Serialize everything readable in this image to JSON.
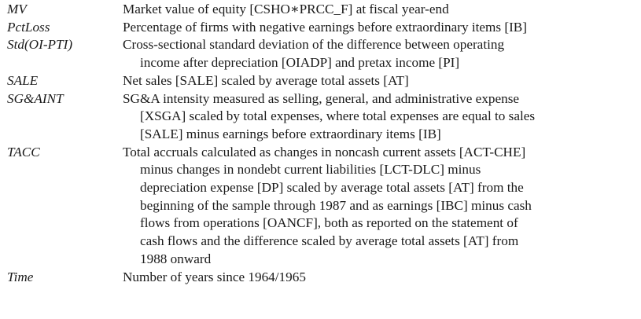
{
  "rows": [
    {
      "term": "MV",
      "lines": [
        "Market value of equity [CSHO∗PRCC_F] at fiscal year-end"
      ]
    },
    {
      "term": "PctLoss",
      "lines": [
        "Percentage of firms with negative earnings before extraordinary items [IB]"
      ]
    },
    {
      "term": "Std(OI-PTI)",
      "lines": [
        "Cross-sectional standard deviation of the difference between operating",
        "income after depreciation [OIADP] and pretax income [PI]"
      ]
    },
    {
      "term": "SALE",
      "lines": [
        "Net sales [SALE] scaled by average total assets [AT]"
      ]
    },
    {
      "term": "SG&AINT",
      "lines": [
        "SG&A intensity measured as selling, general, and administrative expense",
        "[XSGA] scaled by total expenses, where total expenses are equal to sales",
        "[SALE] minus earnings before extraordinary items [IB]"
      ]
    },
    {
      "term": "TACC",
      "lines": [
        "Total accruals calculated as changes in noncash current assets [ACT-CHE]",
        "minus changes in nondebt current liabilities [LCT-DLC] minus",
        "depreciation expense [DP] scaled by average total assets [AT] from the",
        "beginning of the sample through 1987 and as earnings [IBC] minus cash",
        "flows from operations [OANCF], both as reported on the statement of",
        "cash flows and the difference scaled by average total assets [AT] from",
        "1988 onward"
      ]
    },
    {
      "term": "Time",
      "lines": [
        "Number of years since 1964/1965"
      ]
    }
  ]
}
